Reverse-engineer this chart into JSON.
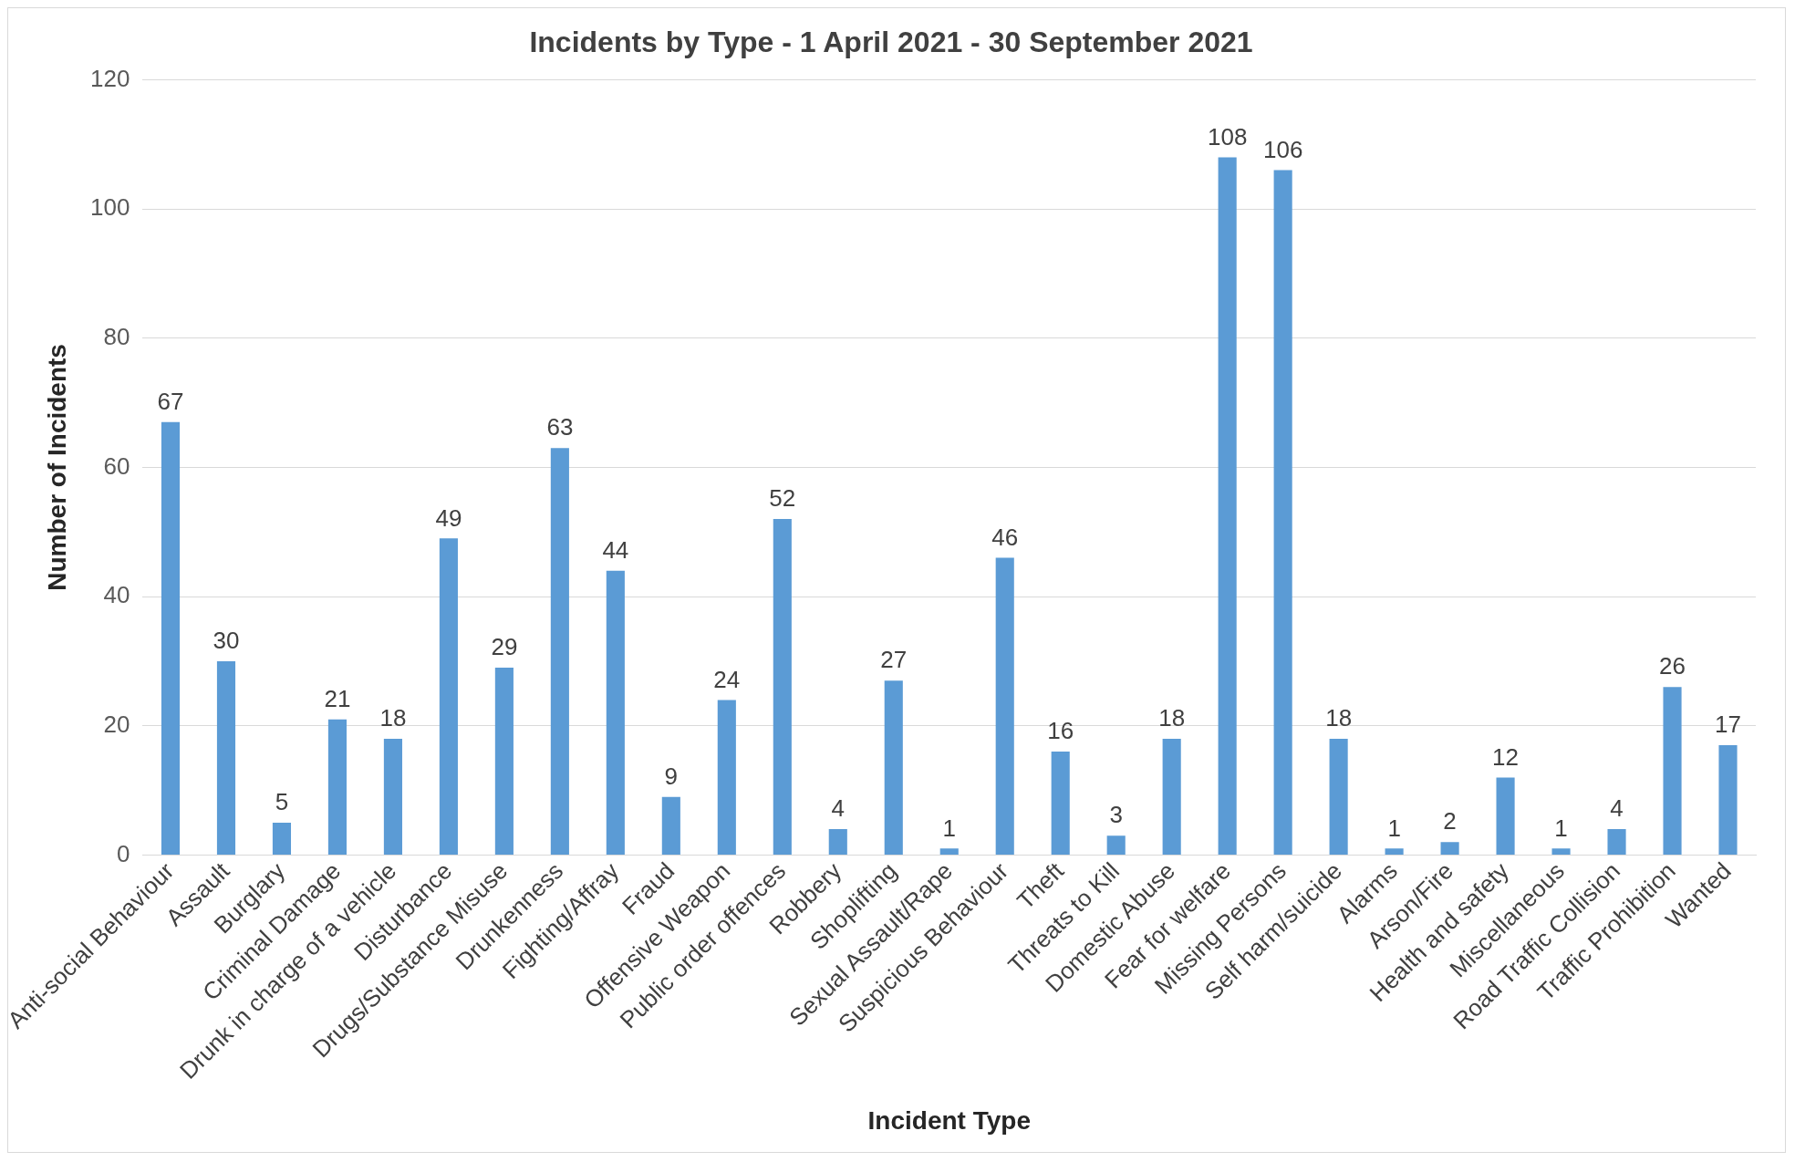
{
  "chart_data": {
    "type": "bar",
    "title": "Incidents by Type - 1 April 2021 - 30 September 2021",
    "xlabel": "Incident Type",
    "ylabel": "Number of Incidents",
    "categories": [
      "Anti-social Behaviour",
      "Assault",
      "Burglary",
      "Criminal Damage",
      "Drunk in charge of a vehicle",
      "Disturbance",
      "Drugs/Substance Misuse",
      "Drunkenness",
      "Fighting/Affray",
      "Fraud",
      "Offensive Weapon",
      "Public order offences",
      "Robbery",
      "Shoplifting",
      "Sexual Assault/Rape",
      "Suspicious Behaviour",
      "Theft",
      "Threats to Kill",
      "Domestic Abuse",
      "Fear for welfare",
      "Missing Persons",
      "Self harm/suicide",
      "Alarms",
      "Arson/Fire",
      "Health and safety",
      "Miscellaneous",
      "Road Traffic Collision",
      "Traffic Prohibition",
      "Wanted"
    ],
    "values": [
      67,
      30,
      5,
      21,
      18,
      49,
      29,
      63,
      44,
      9,
      24,
      52,
      4,
      27,
      1,
      46,
      16,
      3,
      18,
      108,
      106,
      18,
      1,
      2,
      12,
      1,
      4,
      26,
      17
    ],
    "color": "#5b9bd5",
    "ylim": [
      0,
      120
    ],
    "yticks": [
      0,
      20,
      40,
      60,
      80,
      100,
      120
    ],
    "grid": "y",
    "data_labels": true,
    "legend": false
  }
}
